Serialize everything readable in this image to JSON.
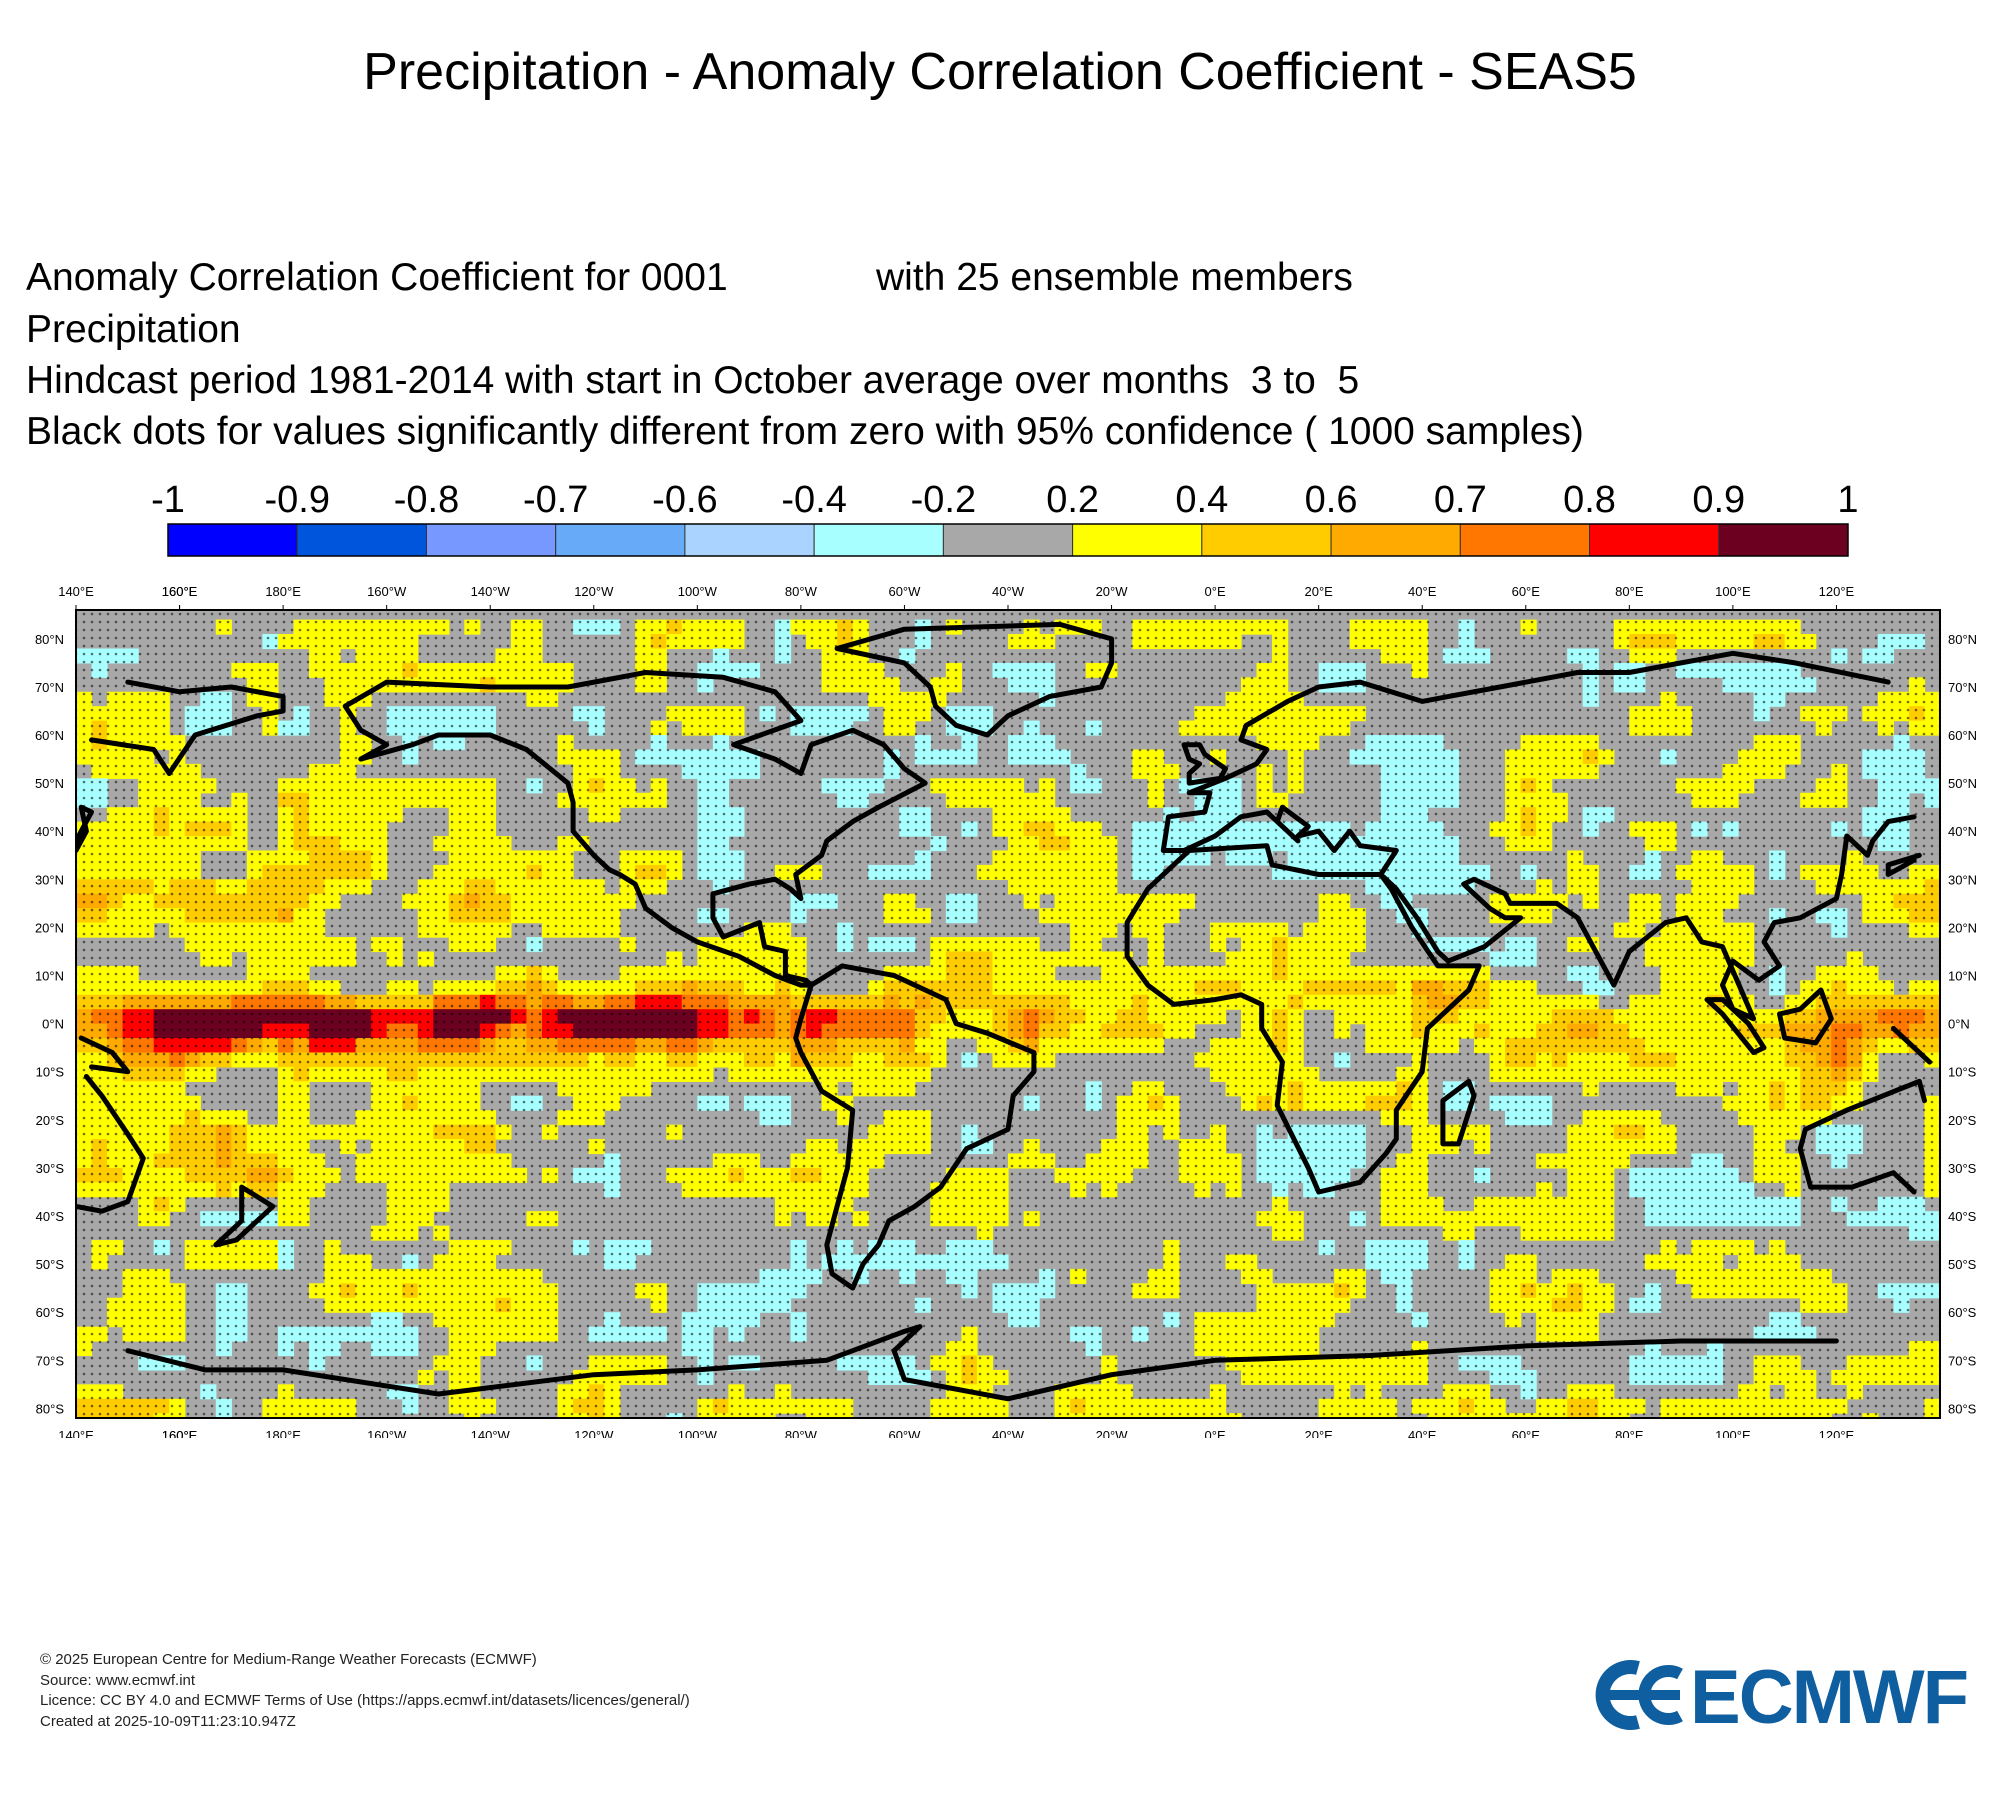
{
  "title": "Precipitation - Anomaly Correlation Coefficient - SEAS5",
  "subtitle": {
    "line1": "Anomaly Correlation Coefficient for 0001",
    "line1_right": "with 25 ensemble members",
    "line2": "Precipitation",
    "line3": "Hindcast period 1981-2014 with start in October average over months  3 to  5",
    "line4": "Black dots for values significantly different from zero with 95% confidence ( 1000 samples)"
  },
  "legend": {
    "ticks": [
      "-1",
      "-0.9",
      "-0.8",
      "-0.7",
      "-0.6",
      "-0.4",
      "-0.2",
      "0.2",
      "0.4",
      "0.6",
      "0.7",
      "0.8",
      "0.9",
      "1"
    ],
    "colors": [
      "#0000ff",
      "#0055dd",
      "#7799ff",
      "#66aaf8",
      "#aad4ff",
      "#a8ffff",
      "#a8a8a8",
      "#ffff00",
      "#ffcc00",
      "#ffaa00",
      "#ff7700",
      "#ff0000",
      "#6b0020"
    ]
  },
  "map": {
    "lon_labels": [
      "160°E",
      "180°E",
      "160°W",
      "140°W",
      "120°W",
      "100°W",
      "80°W",
      "60°W",
      "40°W",
      "20°W",
      "0°E",
      "20°E",
      "40°E",
      "60°E",
      "80°E",
      "100°E",
      "120°E",
      "140°E",
      "160°E"
    ],
    "lat_labels": [
      "80°N",
      "70°N",
      "60°N",
      "50°N",
      "40°N",
      "30°N",
      "20°N",
      "10°N",
      "0°N",
      "10°S",
      "20°S",
      "30°S",
      "40°S",
      "50°S",
      "60°S",
      "70°S",
      "80°S"
    ]
  },
  "footer": {
    "line1": "© 2025 European Centre for Medium-Range Weather Forecasts (ECMWF)",
    "line2": "Source: www.ecmwf.int",
    "line3": "Licence: CC BY 4.0 and ECMWF Terms of Use (https://apps.ecmwf.int/datasets/licences/general/)",
    "line4": "Created at 2025-10-09T11:23:10.947Z"
  },
  "logo_text": "ECMWF"
}
